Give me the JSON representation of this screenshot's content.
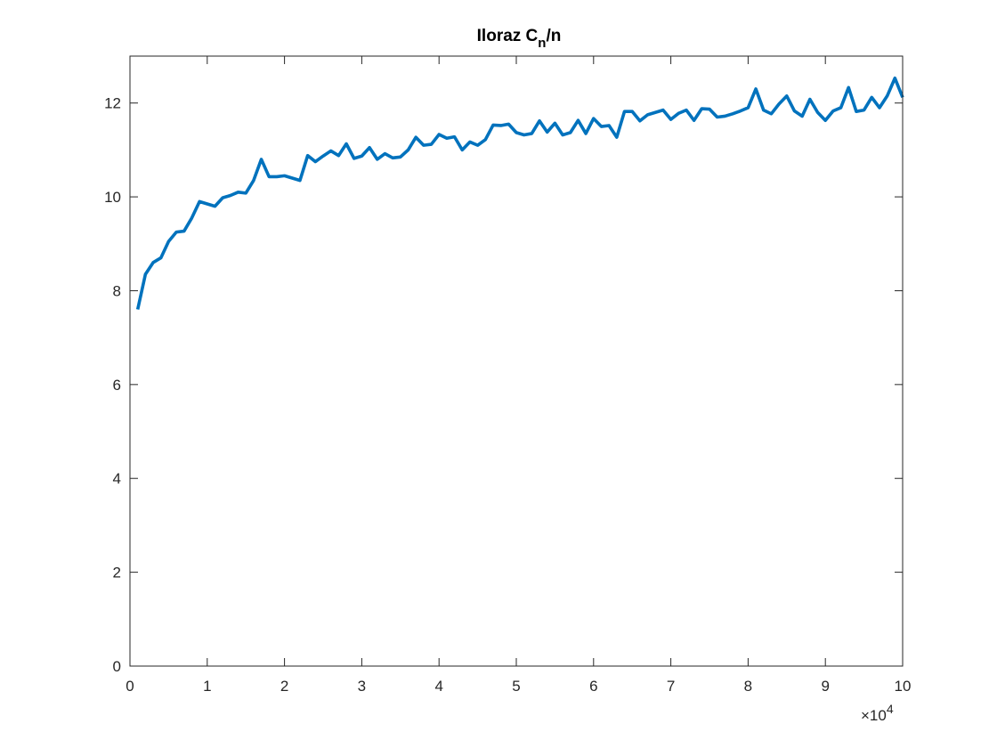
{
  "chart_data": {
    "type": "line",
    "title_main": "Iloraz C",
    "title_sub": "n",
    "title_tail": "/n",
    "xlabel": "",
    "ylabel": "",
    "x_tick_labels": [
      "0",
      "1",
      "2",
      "3",
      "4",
      "5",
      "6",
      "7",
      "8",
      "9",
      "10"
    ],
    "y_tick_labels": [
      "0",
      "2",
      "4",
      "6",
      "8",
      "10",
      "12"
    ],
    "x_exponent_base": "×10",
    "x_exponent_power": "4",
    "xlim": [
      0,
      100000
    ],
    "ylim": [
      0,
      13
    ],
    "grid": false,
    "line_color": "#0072BD",
    "series": [
      {
        "x": [
          1000,
          2000,
          3000,
          4000,
          5000,
          6000,
          7000,
          8000,
          9000,
          10000,
          11000,
          12000,
          13000,
          14000,
          15000,
          16000,
          17000,
          18000,
          19000,
          20000,
          21000,
          22000,
          23000,
          24000,
          25000,
          26000,
          27000,
          28000,
          29000,
          30000,
          31000,
          32000,
          33000,
          34000,
          35000,
          36000,
          37000,
          38000,
          39000,
          40000,
          41000,
          42000,
          43000,
          44000,
          45000,
          46000,
          47000,
          48000,
          49000,
          50000,
          51000,
          52000,
          53000,
          54000,
          55000,
          56000,
          57000,
          58000,
          59000,
          60000,
          61000,
          62000,
          63000,
          64000,
          65000,
          66000,
          67000,
          68000,
          69000,
          70000,
          71000,
          72000,
          73000,
          74000,
          75000,
          76000,
          77000,
          78000,
          79000,
          80000,
          81000,
          82000,
          83000,
          84000,
          85000,
          86000,
          87000,
          88000,
          89000,
          90000,
          91000,
          92000,
          93000,
          94000,
          95000,
          96000,
          97000,
          98000,
          99000,
          100000
        ],
        "y": [
          7.6,
          8.35,
          8.6,
          8.7,
          9.05,
          9.25,
          9.27,
          9.55,
          9.9,
          9.85,
          9.8,
          9.98,
          10.03,
          10.1,
          10.08,
          10.35,
          10.8,
          10.43,
          10.43,
          10.45,
          10.4,
          10.35,
          10.88,
          10.75,
          10.87,
          10.98,
          10.88,
          11.13,
          10.82,
          10.87,
          11.05,
          10.8,
          10.92,
          10.83,
          10.85,
          11.0,
          11.27,
          11.1,
          11.12,
          11.33,
          11.25,
          11.28,
          11.0,
          11.17,
          11.1,
          11.22,
          11.53,
          11.52,
          11.55,
          11.37,
          11.32,
          11.35,
          11.62,
          11.38,
          11.57,
          11.32,
          11.37,
          11.63,
          11.35,
          11.67,
          11.5,
          11.52,
          11.27,
          11.82,
          11.82,
          11.62,
          11.75,
          11.8,
          11.85,
          11.65,
          11.78,
          11.85,
          11.63,
          11.88,
          11.87,
          11.7,
          11.72,
          11.77,
          11.83,
          11.9,
          12.3,
          11.85,
          11.77,
          11.98,
          12.15,
          11.83,
          11.72,
          12.08,
          11.8,
          11.63,
          11.83,
          11.9,
          12.33,
          11.82,
          11.85,
          12.12,
          11.9,
          12.15,
          12.53,
          12.12
        ]
      }
    ]
  }
}
